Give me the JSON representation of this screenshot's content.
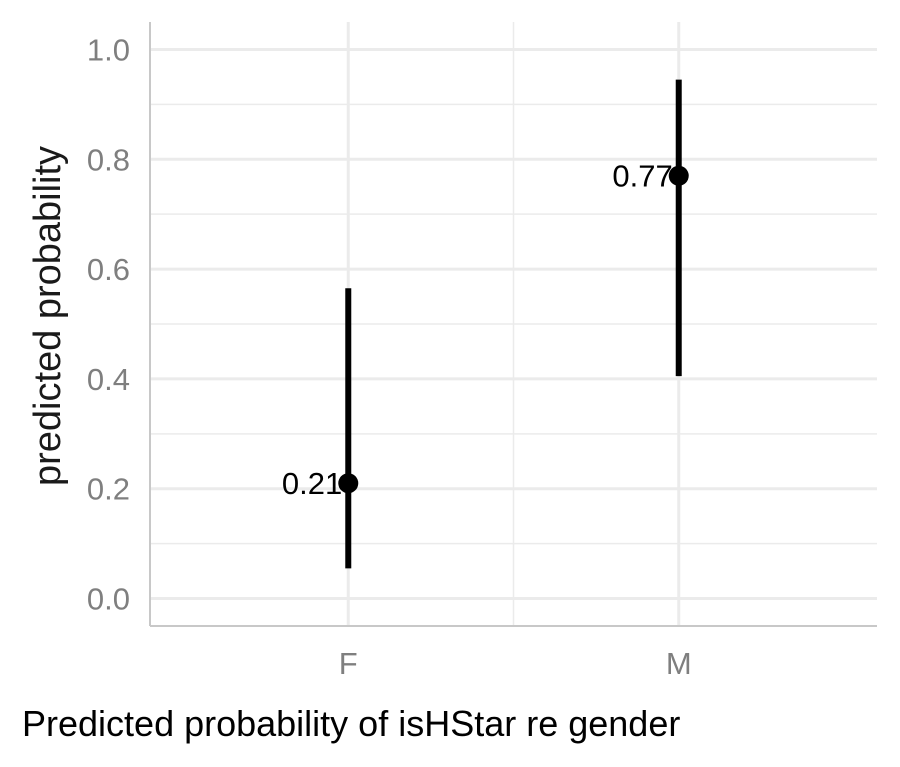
{
  "chart_data": {
    "type": "scatter",
    "title": "",
    "caption": "Predicted probability of isHStar re gender",
    "xlabel": "",
    "ylabel": "predicted probability",
    "categories": [
      "F",
      "M"
    ],
    "ylim": [
      -0.05,
      1.05
    ],
    "yticks": [
      "0.0",
      "0.2",
      "0.4",
      "0.6",
      "0.8",
      "1.0"
    ],
    "grid": true,
    "series": [
      {
        "values": [
          0.21,
          0.77
        ],
        "lower": [
          0.055,
          0.405
        ],
        "upper": [
          0.565,
          0.945
        ],
        "labels": [
          "0.21",
          "0.77"
        ]
      }
    ],
    "colors": {
      "point": "#000000",
      "grid": "#ebebeb",
      "axis": "#c8c8c8",
      "tick_text": "#7f7f7f"
    }
  }
}
